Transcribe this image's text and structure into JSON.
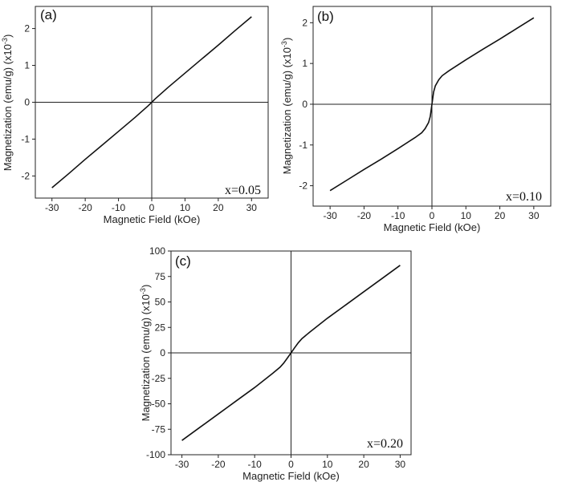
{
  "chart_data": [
    {
      "type": "line",
      "panel_label": "(a)",
      "annotation": "x=0.05",
      "xlabel": "Magnetic Field (kOe)",
      "ylabel": "Magnetization (emu/g) (x10",
      "ylabel_exp": "-3",
      "xlim": [
        -35,
        35
      ],
      "ylim": [
        -2.6,
        2.6
      ],
      "xticks": [
        -30,
        -20,
        -10,
        0,
        10,
        20,
        30
      ],
      "yticks": [
        -2,
        -1,
        0,
        1,
        2
      ],
      "grid": false,
      "series": [
        {
          "x": [
            -30,
            -25,
            -20,
            -15,
            -10,
            -5,
            -2,
            -1,
            0,
            1,
            2,
            5,
            10,
            15,
            20,
            25,
            30
          ],
          "y": [
            -2.32,
            -1.94,
            -1.55,
            -1.17,
            -0.79,
            -0.41,
            -0.17,
            -0.09,
            0.0,
            0.09,
            0.17,
            0.41,
            0.79,
            1.17,
            1.55,
            1.94,
            2.32
          ]
        }
      ]
    },
    {
      "type": "line",
      "panel_label": "(b)",
      "annotation": "x=0.10",
      "xlabel": "Magnetic Field (kOe)",
      "ylabel": "Magnetization (emu/g) (x10",
      "ylabel_exp": "-3",
      "xlim": [
        -35,
        35
      ],
      "ylim": [
        -2.5,
        2.4
      ],
      "xticks": [
        -30,
        -20,
        -10,
        0,
        10,
        20,
        30
      ],
      "yticks": [
        -2,
        -1,
        0,
        1,
        2
      ],
      "grid": false,
      "series": [
        {
          "x": [
            -30,
            -25,
            -20,
            -15,
            -10,
            -5,
            -3,
            -2,
            -1,
            -0.5,
            0,
            0.5,
            1,
            2,
            3,
            5,
            10,
            15,
            20,
            25,
            30
          ],
          "y": [
            -2.12,
            -1.86,
            -1.6,
            -1.35,
            -1.09,
            -0.82,
            -0.7,
            -0.6,
            -0.45,
            -0.3,
            0.0,
            0.3,
            0.45,
            0.6,
            0.7,
            0.82,
            1.09,
            1.35,
            1.6,
            1.86,
            2.12
          ]
        }
      ]
    },
    {
      "type": "line",
      "panel_label": "(c)",
      "annotation": "x=0.20",
      "xlabel": "Magnetic Field (kOe)",
      "ylabel": "Magnetization (emu/g) (x10",
      "ylabel_exp": "-3",
      "xlim": [
        -33,
        33
      ],
      "ylim": [
        -100,
        100
      ],
      "xticks": [
        -30,
        -20,
        -10,
        0,
        10,
        20,
        30
      ],
      "yticks": [
        -100,
        -75,
        -50,
        -25,
        0,
        25,
        50,
        75,
        100
      ],
      "grid": false,
      "series": [
        {
          "x": [
            -30,
            -25,
            -20,
            -15,
            -10,
            -5,
            -3,
            -2,
            -1,
            0,
            1,
            2,
            3,
            5,
            10,
            15,
            20,
            25,
            30
          ],
          "y": [
            -86,
            -73,
            -60,
            -47,
            -34,
            -20,
            -14,
            -10,
            -5,
            0,
            5,
            10,
            14,
            20,
            34,
            47,
            60,
            73,
            86
          ]
        }
      ]
    }
  ]
}
